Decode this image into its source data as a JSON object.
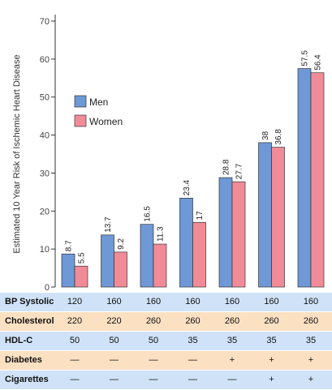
{
  "chart_data": {
    "type": "bar",
    "ylabel": "Estimated 10 Year Risk of Ischemic Heart Disease",
    "ylim": [
      0,
      70
    ],
    "yticks": [
      0,
      10,
      20,
      30,
      40,
      50,
      60,
      70
    ],
    "grid": false,
    "legend": "upper-left",
    "series": [
      {
        "name": "Men",
        "color": "#6e98d6",
        "values": [
          8.7,
          13.7,
          16.5,
          23.4,
          28.8,
          38,
          57.5
        ]
      },
      {
        "name": "Women",
        "color": "#f28b98",
        "values": [
          5.5,
          9.2,
          11.3,
          17,
          27.7,
          36.8,
          56.4
        ]
      }
    ],
    "value_labels": {
      "Men": [
        "8.7",
        "13.7",
        "16.5",
        "23.4",
        "28.8",
        "38",
        "57.5"
      ],
      "Women": [
        "5.5",
        "9.2",
        "11.3",
        "17",
        "27.7",
        "36.8",
        "56.4"
      ]
    }
  },
  "table": {
    "rows": [
      {
        "label": "BP Systolic",
        "bg": "#cfe2f7",
        "values": [
          "120",
          "160",
          "160",
          "160",
          "160",
          "160",
          "160"
        ]
      },
      {
        "label": "Cholesterol",
        "bg": "#fbe0c2",
        "values": [
          "220",
          "220",
          "260",
          "260",
          "260",
          "260",
          "260"
        ]
      },
      {
        "label": "HDL-C",
        "bg": "#cfe2f7",
        "values": [
          "50",
          "50",
          "50",
          "35",
          "35",
          "35",
          "35"
        ]
      },
      {
        "label": "Diabetes",
        "bg": "#fbe0c2",
        "values": [
          "—",
          "—",
          "—",
          "—",
          "+",
          "+",
          "+"
        ]
      },
      {
        "label": "Cigarettes",
        "bg": "#cfe2f7",
        "values": [
          "—",
          "—",
          "—",
          "—",
          "—",
          "+",
          "+"
        ]
      }
    ]
  }
}
